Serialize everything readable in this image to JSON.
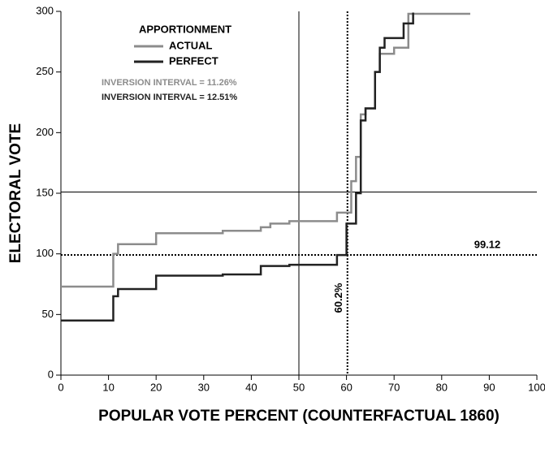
{
  "chart_data": {
    "type": "line",
    "y_label": "ELECTORAL VOTE",
    "x_label": "POPULAR VOTE PERCENT (COUNTERFACTUAL 1860)",
    "legend_title": "APPORTIONMENT",
    "xlim": [
      0,
      100
    ],
    "ylim": [
      0,
      300
    ],
    "xticks": [
      0,
      10,
      20,
      30,
      40,
      50,
      60,
      70,
      80,
      90,
      100
    ],
    "yticks": [
      0,
      50,
      100,
      150,
      200,
      250,
      300
    ],
    "series": [
      {
        "name": "ACTUAL",
        "color": "#8c8c8c",
        "annotation": "INVERSION INTERVAL = 11.26%",
        "x": [
          0,
          11,
          11,
          12,
          12,
          20,
          20,
          34,
          34,
          42,
          42,
          44,
          44,
          48,
          48,
          58,
          58,
          61,
          61,
          62,
          62,
          63,
          63,
          64,
          64,
          66,
          66,
          67,
          67,
          70,
          70,
          73,
          73,
          86
        ],
        "values": [
          73,
          73,
          100,
          100,
          108,
          108,
          117,
          117,
          119,
          119,
          122,
          122,
          125,
          125,
          127,
          127,
          134,
          134,
          160,
          160,
          180,
          180,
          215,
          215,
          220,
          220,
          250,
          250,
          265,
          265,
          270,
          270,
          298,
          298
        ]
      },
      {
        "name": "PERFECT",
        "color": "#222222",
        "annotation": "INVERSION INTERVAL = 12.51%",
        "x": [
          0,
          11,
          11,
          12,
          12,
          20,
          20,
          34,
          34,
          42,
          42,
          48,
          48,
          58,
          58,
          60,
          60,
          62,
          62,
          63,
          63,
          64,
          64,
          66,
          66,
          67,
          67,
          68,
          68,
          72,
          72,
          74,
          74
        ],
        "values": [
          45,
          45,
          65,
          65,
          71,
          71,
          82,
          82,
          83,
          83,
          90,
          90,
          91,
          91,
          99,
          99,
          125,
          125,
          150,
          150,
          210,
          210,
          220,
          220,
          250,
          250,
          270,
          270,
          278,
          278,
          290,
          290,
          299
        ]
      }
    ],
    "hlines": [
      {
        "value": 151,
        "style": "solid"
      },
      {
        "value": 99.12,
        "style": "dotted"
      }
    ],
    "vlines": [
      {
        "value": 50,
        "style": "solid"
      },
      {
        "value": 60.2,
        "label": "60.2%",
        "style": "dotted"
      }
    ]
  }
}
